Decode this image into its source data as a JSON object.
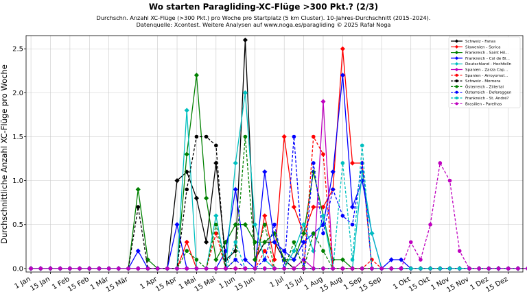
{
  "chart_data": {
    "type": "line",
    "title": "Wo starten Paragliding-XC-Flüge >300 Pkt.? (2/3)",
    "subtitle": "Durchschn. Anzahl XC-Flüge (>300 Pkt.) pro Woche pro Startplatz (5 km Cluster). 10-Jahres-Durchschnitt (2015–2024).",
    "source": "Datenquelle: Xcontest. Weitere Analysen auf www.noga.es/paragliding © 2025 Rafał Noga",
    "ylabel": "Durchschnittliche Anzahl XC-Flüge pro Woche",
    "xlabel": "",
    "ylim": [
      -0.04,
      2.65
    ],
    "yticks": [
      0.0,
      0.5,
      1.0,
      1.5,
      2.0,
      2.5
    ],
    "ytick_labels": [
      "0.0",
      "0.5",
      "1.0",
      "1.5",
      "2.0",
      "2.5"
    ],
    "xlim": [
      0.5,
      51.5
    ],
    "xticks": [
      1,
      3,
      5,
      7,
      9,
      11,
      14,
      16,
      18,
      20,
      22,
      24,
      27,
      29,
      31,
      33,
      35,
      37,
      40,
      42,
      44,
      46,
      48,
      50
    ],
    "xtick_labels": [
      "1 Jan",
      "15 Jan",
      "1 Feb",
      "15 Feb",
      "1 Mär",
      "15 Mär",
      "1 Apr",
      "15 Apr",
      "1 Mai",
      "15 Mai",
      "1 Jun",
      "15 Jun",
      "1 Jul",
      "15 Jul",
      "1 Aug",
      "15 Aug",
      "1 Sep",
      "15 Sep",
      "1 Okt",
      "15 Okt",
      "1 Nov",
      "15 Nov",
      "1 Dez",
      "15 Dez"
    ],
    "grid": true,
    "legend_position": "top-right",
    "x": [
      1,
      2,
      3,
      4,
      5,
      6,
      7,
      8,
      9,
      10,
      11,
      12,
      13,
      14,
      15,
      16,
      17,
      18,
      19,
      20,
      21,
      22,
      23,
      24,
      25,
      26,
      27,
      28,
      29,
      30,
      31,
      32,
      33,
      34,
      35,
      36,
      37,
      38,
      39,
      40,
      41,
      42,
      43,
      44,
      45,
      46,
      47,
      48,
      49,
      50,
      51,
      52
    ],
    "series": [
      {
        "name": "Schweiz - Fanas",
        "color": "#000000",
        "dashed": false,
        "marker": "diamond",
        "values": [
          0,
          0,
          0,
          0,
          0,
          0,
          0,
          0,
          0,
          0,
          0,
          0,
          0,
          0,
          0,
          1.0,
          1.1,
          0.8,
          0.3,
          1.2,
          0.1,
          0.2,
          2.6,
          0.1,
          0.3,
          0.3,
          0.1,
          0,
          0,
          0,
          0,
          0,
          0,
          0,
          0,
          0,
          0,
          0,
          0,
          0,
          0,
          0,
          0,
          0,
          0,
          0,
          0,
          0,
          0,
          0,
          0,
          0
        ]
      },
      {
        "name": "Slowenien - Sorica",
        "color": "#ff0000",
        "dashed": false,
        "marker": "diamond",
        "values": [
          0,
          0,
          0,
          0,
          0,
          0,
          0,
          0,
          0,
          0,
          0,
          0,
          0,
          0,
          0,
          0,
          0.3,
          0,
          0,
          0,
          0,
          0,
          0,
          0,
          0.6,
          0.1,
          1.5,
          0.7,
          0.4,
          0.7,
          0.7,
          0.9,
          2.5,
          1.2,
          1.2,
          0,
          0,
          0,
          0,
          0,
          0,
          0,
          0,
          0,
          0,
          0,
          0,
          0,
          0,
          0,
          0,
          0
        ]
      },
      {
        "name": "Frankreich - Saint Hil...",
        "color": "#008000",
        "dashed": false,
        "marker": "diamond",
        "values": [
          0,
          0,
          0,
          0,
          0,
          0,
          0,
          0,
          0,
          0,
          0,
          0.9,
          0.1,
          0,
          0,
          0,
          1.3,
          2.2,
          0.8,
          0.1,
          0.3,
          0.5,
          0.5,
          0.3,
          0.3,
          0.4,
          0.1,
          0.1,
          0.4,
          1.1,
          0.6,
          0.1,
          0.1,
          0,
          0,
          0,
          0,
          0,
          0,
          0,
          0,
          0,
          0,
          0,
          0,
          0,
          0,
          0,
          0,
          0,
          0,
          0
        ]
      },
      {
        "name": "Frankreich - Col de Bl...",
        "color": "#0000ff",
        "dashed": false,
        "marker": "diamond",
        "values": [
          0,
          0,
          0,
          0,
          0,
          0,
          0,
          0,
          0,
          0,
          0,
          0.2,
          0,
          0,
          0,
          0.5,
          0,
          0,
          0,
          0,
          0.2,
          0.9,
          0.1,
          0,
          1.1,
          0.3,
          0.2,
          0.1,
          0.3,
          0.4,
          0.5,
          1.1,
          2.2,
          0.7,
          1.0,
          0.4,
          0,
          0.1,
          0.1,
          0,
          0,
          0,
          0,
          0,
          0,
          0,
          0,
          0,
          0,
          0,
          0,
          0
        ]
      },
      {
        "name": "Deutschland - Hochfelln",
        "color": "#00bfbf",
        "dashed": false,
        "marker": "diamond",
        "values": [
          0,
          0,
          0,
          0,
          0,
          0,
          0,
          0,
          0,
          0,
          0,
          0,
          0,
          0,
          0,
          0,
          1.8,
          0,
          0,
          0.6,
          0,
          1.2,
          2.0,
          0.5,
          0.1,
          0,
          0,
          0.2,
          0.5,
          0.2,
          0.6,
          0,
          0,
          0,
          1.1,
          0.4,
          0,
          0,
          0,
          0,
          0,
          0,
          0,
          0,
          0,
          0,
          0,
          0,
          0,
          0,
          0,
          0
        ]
      },
      {
        "name": "Spanien - Zarza Cap...",
        "color": "#bf00bf",
        "dashed": false,
        "marker": "diamond",
        "values": [
          0,
          0,
          0,
          0,
          0,
          0,
          0,
          0,
          0,
          0,
          0,
          0,
          0,
          0,
          0,
          0,
          0,
          0,
          0,
          0,
          0,
          0,
          0,
          0,
          0,
          0,
          0,
          0,
          0.1,
          0,
          1.9,
          0,
          0,
          0,
          0,
          0,
          0,
          0,
          0,
          0,
          0,
          0,
          0,
          0,
          0,
          0,
          0,
          0,
          0,
          0,
          0,
          0
        ]
      },
      {
        "name": "Spanien - Arroyomol...",
        "color": "#ff0000",
        "dashed": true,
        "marker": "circle",
        "values": [
          0,
          0,
          0,
          0,
          0,
          0,
          0,
          0,
          0,
          0,
          0,
          0,
          0,
          0,
          0,
          0,
          0,
          0,
          0,
          0.4,
          0,
          0,
          0,
          0,
          0.2,
          0,
          0,
          0,
          0,
          1.5,
          1.3,
          0,
          0,
          0,
          0,
          0.1,
          0,
          0,
          0,
          0,
          0,
          0,
          0,
          0,
          0,
          0,
          0,
          0,
          0,
          0,
          0,
          0
        ]
      },
      {
        "name": "Schweiz - Mornera",
        "color": "#000000",
        "dashed": true,
        "marker": "circle",
        "values": [
          0,
          0,
          0,
          0,
          0,
          0,
          0,
          0,
          0,
          0,
          0,
          0.7,
          0,
          0,
          0,
          0,
          0.9,
          1.5,
          1.5,
          1.4,
          0,
          0,
          0,
          0,
          0,
          0,
          0,
          0,
          0,
          0,
          0,
          0,
          0,
          0,
          0,
          0,
          0,
          0,
          0,
          0,
          0,
          0,
          0,
          0,
          0,
          0,
          0,
          0,
          0,
          0,
          0,
          0
        ]
      },
      {
        "name": "Österreich - Zillertal",
        "color": "#008000",
        "dashed": true,
        "marker": "circle",
        "values": [
          0,
          0,
          0,
          0,
          0,
          0,
          0,
          0,
          0,
          0,
          0,
          0,
          0,
          0,
          0,
          0,
          0.2,
          0.1,
          0,
          0.5,
          0,
          0.1,
          1.5,
          0.1,
          0.5,
          0,
          0,
          0.3,
          0,
          0.4,
          0.2,
          0,
          0,
          0,
          0,
          0,
          0,
          0,
          0,
          0,
          0,
          0,
          0,
          0,
          0,
          0,
          0,
          0,
          0,
          0,
          0,
          0
        ]
      },
      {
        "name": "Österreich - Defereggen",
        "color": "#0000ff",
        "dashed": true,
        "marker": "circle",
        "values": [
          0,
          0,
          0,
          0,
          0,
          0,
          0,
          0,
          0,
          0,
          0,
          0,
          0,
          0,
          0,
          0,
          0,
          0,
          0,
          0,
          0,
          0.1,
          0,
          0,
          0.1,
          0.5,
          0,
          1.5,
          0,
          1.2,
          0.4,
          0.9,
          0.6,
          0.5,
          1.2,
          0,
          0,
          0,
          0,
          0,
          0,
          0,
          0,
          0,
          0,
          0,
          0,
          0,
          0,
          0,
          0,
          0
        ]
      },
      {
        "name": "Frankreich - St. André?",
        "color": "#00bfbf",
        "dashed": true,
        "marker": "circle",
        "values": [
          0,
          0,
          0,
          0,
          0,
          0,
          0,
          0,
          0,
          0,
          0,
          0,
          0,
          0,
          0,
          0,
          0,
          0,
          0,
          0,
          0,
          0.3,
          0,
          0,
          0,
          0,
          0,
          0,
          0,
          0,
          0,
          0,
          1.2,
          0.1,
          1.4,
          0,
          0,
          0,
          0,
          0,
          0,
          0,
          0,
          0,
          0,
          0,
          0,
          0,
          0,
          0,
          0,
          0
        ]
      },
      {
        "name": "Brasilien - Parelhas",
        "color": "#bf00bf",
        "dashed": true,
        "marker": "circle",
        "values": [
          0,
          0,
          0,
          0,
          0,
          0,
          0,
          0,
          0,
          0,
          0,
          0,
          0,
          0,
          0,
          0,
          0,
          0,
          0,
          0,
          0,
          0,
          0,
          0,
          0,
          0,
          0,
          0,
          0,
          0,
          0,
          0,
          0,
          0,
          0,
          0,
          0,
          0,
          0,
          0.3,
          0.1,
          0.5,
          1.2,
          1.0,
          0.2,
          0,
          0,
          0,
          0,
          0,
          0,
          0
        ]
      }
    ]
  }
}
